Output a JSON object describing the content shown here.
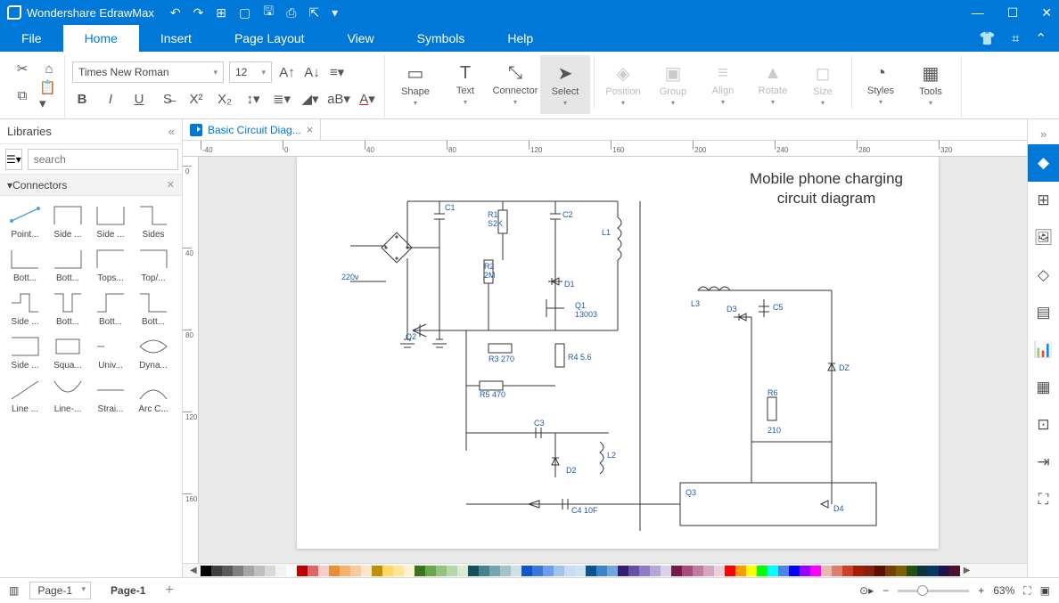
{
  "app": {
    "title": "Wondershare EdrawMax"
  },
  "qat": [
    "↶",
    "↷",
    "⊞",
    "▢",
    "🖫",
    "⎙",
    "⇱",
    "▾"
  ],
  "win": [
    "—",
    "☐",
    "✕"
  ],
  "menus": [
    "File",
    "Home",
    "Insert",
    "Page Layout",
    "View",
    "Symbols",
    "Help"
  ],
  "menu_active": 1,
  "menu_right": [
    "👕",
    "⌗",
    "⌃"
  ],
  "ribbon": {
    "font_name": "Times New Roman",
    "font_size": "12",
    "bigbtns": [
      {
        "label": "Shape",
        "icon": "▭",
        "dd": true
      },
      {
        "label": "Text",
        "icon": "T",
        "dd": true
      },
      {
        "label": "Connector",
        "icon": "⤡",
        "dd": true
      },
      {
        "label": "Select",
        "icon": "➤",
        "dd": true,
        "sel": true
      },
      {
        "label": "Position",
        "icon": "◈",
        "dis": true,
        "dd": true
      },
      {
        "label": "Group",
        "icon": "▣",
        "dis": true,
        "dd": true
      },
      {
        "label": "Align",
        "icon": "≡",
        "dis": true,
        "dd": true
      },
      {
        "label": "Rotate",
        "icon": "▲",
        "dis": true,
        "dd": true
      },
      {
        "label": "Size",
        "icon": "◻",
        "dis": true,
        "dd": true
      },
      {
        "label": "Styles",
        "icon": "◔",
        "dd": true
      },
      {
        "label": "Tools",
        "icon": "▦",
        "dd": true
      }
    ]
  },
  "sidebar": {
    "title": "Libraries",
    "search_placeholder": "search",
    "section": "Connectors",
    "shapes": [
      [
        "Point...",
        "Side ...",
        "Side ...",
        "Sides"
      ],
      [
        "Bott...",
        "Bott...",
        "Tops...",
        "Top/..."
      ],
      [
        "Side ...",
        "Bott...",
        "Bott...",
        "Bott..."
      ],
      [
        "Side ...",
        "Squa...",
        "Univ...",
        "Dyna..."
      ],
      [
        "Line ...",
        "Line-...",
        "Strai...",
        "Arc C..."
      ]
    ]
  },
  "doctab": {
    "name": "Basic Circuit Diag..."
  },
  "ruler_h": [
    -40,
    0,
    40,
    80,
    120,
    160,
    200,
    240,
    280,
    320
  ],
  "ruler_v": [
    0,
    40,
    80,
    120,
    160
  ],
  "diagram": {
    "title_l1": "Mobile phone charging",
    "title_l2": "circuit diagram",
    "labels": {
      "v220": "220v",
      "c1": "C1",
      "c2": "C2",
      "r1": "R1",
      "s2k": "S2K",
      "r2_a": "R2",
      "r2_b": "2M",
      "l1": "L1",
      "d1": "D1",
      "q1_a": "Q1",
      "q1_b": "13003",
      "q2": "Q2",
      "r3": "R3 270",
      "r4": "R4 5.6",
      "r5": "R5 470",
      "c3": "C3",
      "d2": "D2",
      "l2": "L2",
      "c4": "C4 10F",
      "q3": "Q3",
      "l3": "L3",
      "d3": "D3",
      "c5": "C5",
      "dz": "DZ",
      "r6_a": "R6",
      "r6_b": "210",
      "d4": "D4"
    }
  },
  "colors": [
    "#000000",
    "#3f3f3f",
    "#595959",
    "#7f7f7f",
    "#a5a5a5",
    "#bfbfbf",
    "#d8d8d8",
    "#f2f2f2",
    "#ffffff",
    "#c00000",
    "#e06666",
    "#f4cccc",
    "#e69138",
    "#f6b26b",
    "#f9cb9c",
    "#fce5cd",
    "#bf9000",
    "#ffd966",
    "#ffe599",
    "#fff2cc",
    "#38761d",
    "#6aa84f",
    "#93c47d",
    "#b6d7a8",
    "#d9ead3",
    "#134f5c",
    "#45818e",
    "#76a5af",
    "#a2c4c9",
    "#d0e0e3",
    "#1155cc",
    "#3c78d8",
    "#6d9eeb",
    "#9fc5e8",
    "#c9daf8",
    "#cfe2f3",
    "#0b5394",
    "#3d85c6",
    "#6fa8dc",
    "#351c75",
    "#674ea7",
    "#8e7cc3",
    "#b4a7d6",
    "#d9d2e9",
    "#741b47",
    "#a64d79",
    "#c27ba0",
    "#d5a6bd",
    "#ead1dc",
    "#ff0000",
    "#ff9900",
    "#ffff00",
    "#00ff00",
    "#00ffff",
    "#4a86e8",
    "#0000ff",
    "#9900ff",
    "#ff00ff",
    "#e6b8af",
    "#dd7e6b",
    "#cc4125",
    "#a61c00",
    "#85200c",
    "#5b0f00",
    "#783f04",
    "#7f6000",
    "#274e13",
    "#0c343d",
    "#073763",
    "#20124d",
    "#4c1130"
  ],
  "rpanel": [
    "◆",
    "⊞",
    "🖼",
    "◇",
    "▤",
    "📊",
    "▦",
    "⊡",
    "⇥",
    "⛶"
  ],
  "rpanel_active": 0,
  "status": {
    "page_sel": "Page-1",
    "page_tab": "Page-1",
    "zoom": "63%"
  }
}
